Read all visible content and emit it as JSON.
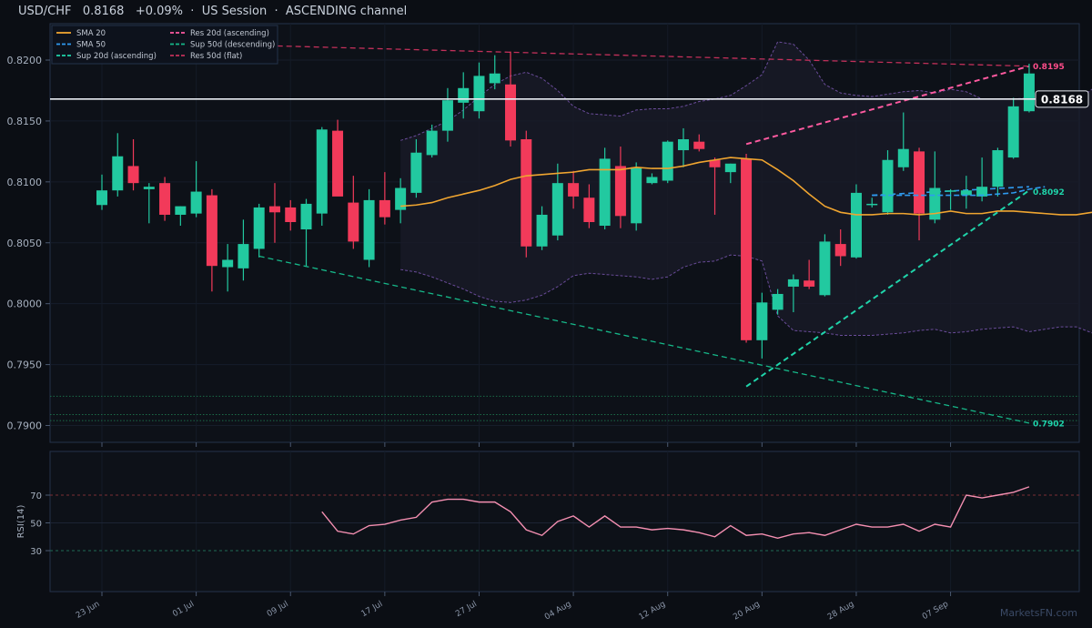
{
  "header": {
    "symbol": "USD/CHF",
    "price": "0.8168",
    "change": "+0.09%",
    "session": "US Session",
    "channel": "ASCENDING channel",
    "sep": "·"
  },
  "watermark": "MarketsFN.com",
  "legend": [
    {
      "label": "SMA 20",
      "color": "#f0a530",
      "dash": "solid"
    },
    {
      "label": "SMA 50",
      "color": "#2f9bf0",
      "dash": "dashed"
    },
    {
      "label": "Sup 20d (ascending)",
      "color": "#1fd4aa",
      "dash": "dashed"
    },
    {
      "label": "Res 20d (ascending)",
      "color": "#ff5aa0",
      "dash": "dashed"
    },
    {
      "label": "Sup 50d (descending)",
      "color": "#16b889",
      "dash": "dashed"
    },
    {
      "label": "Res 50d (flat)",
      "color": "#c2305a",
      "dash": "dashed"
    }
  ],
  "colors": {
    "up": "#22c9a0",
    "down": "#f23a5a",
    "sma20": "#f0a530",
    "sma50": "#2f9bf0",
    "rsi": "#f48fb1"
  },
  "chart_data": {
    "type": "candlestick",
    "ylim": [
      0.7888,
      0.8225
    ],
    "yticks": [
      "0.7900",
      "0.7950",
      "0.8000",
      "0.8050",
      "0.8100",
      "0.8150",
      "0.8200"
    ],
    "xticks": [
      {
        "i": 0,
        "label": "23 Jun"
      },
      {
        "i": 6,
        "label": "01 Jul"
      },
      {
        "i": 12,
        "label": "09 Jul"
      },
      {
        "i": 18,
        "label": "17 Jul"
      },
      {
        "i": 24,
        "label": "27 Jul"
      },
      {
        "i": 30,
        "label": "04 Aug"
      },
      {
        "i": 36,
        "label": "12 Aug"
      },
      {
        "i": 42,
        "label": "20 Aug"
      },
      {
        "i": 48,
        "label": "28 Aug"
      },
      {
        "i": 54,
        "label": "07 Sep"
      }
    ],
    "candles": [
      {
        "o": 0.8081,
        "h": 0.8106,
        "l": 0.8077,
        "c": 0.8093
      },
      {
        "o": 0.8093,
        "h": 0.814,
        "l": 0.8088,
        "c": 0.8121
      },
      {
        "o": 0.8113,
        "h": 0.8135,
        "l": 0.8093,
        "c": 0.8099
      },
      {
        "o": 0.8094,
        "h": 0.8099,
        "l": 0.8066,
        "c": 0.8096
      },
      {
        "o": 0.8099,
        "h": 0.8104,
        "l": 0.8068,
        "c": 0.8073
      },
      {
        "o": 0.8073,
        "h": 0.808,
        "l": 0.8064,
        "c": 0.808
      },
      {
        "o": 0.8074,
        "h": 0.8117,
        "l": 0.8071,
        "c": 0.8092
      },
      {
        "o": 0.8089,
        "h": 0.8094,
        "l": 0.801,
        "c": 0.8031
      },
      {
        "o": 0.803,
        "h": 0.8049,
        "l": 0.801,
        "c": 0.8036
      },
      {
        "o": 0.8029,
        "h": 0.8069,
        "l": 0.8019,
        "c": 0.8049
      },
      {
        "o": 0.8045,
        "h": 0.8082,
        "l": 0.8038,
        "c": 0.8079
      },
      {
        "o": 0.808,
        "h": 0.8099,
        "l": 0.805,
        "c": 0.8075
      },
      {
        "o": 0.8079,
        "h": 0.8085,
        "l": 0.806,
        "c": 0.8067
      },
      {
        "o": 0.8061,
        "h": 0.8086,
        "l": 0.8031,
        "c": 0.8082
      },
      {
        "o": 0.8074,
        "h": 0.8145,
        "l": 0.8064,
        "c": 0.8143
      },
      {
        "o": 0.8142,
        "h": 0.8151,
        "l": 0.809,
        "c": 0.8088
      },
      {
        "o": 0.8083,
        "h": 0.8105,
        "l": 0.8045,
        "c": 0.8051
      },
      {
        "o": 0.8036,
        "h": 0.8094,
        "l": 0.803,
        "c": 0.8085
      },
      {
        "o": 0.8085,
        "h": 0.8108,
        "l": 0.8065,
        "c": 0.8071
      },
      {
        "o": 0.8077,
        "h": 0.8103,
        "l": 0.8066,
        "c": 0.8095
      },
      {
        "o": 0.8091,
        "h": 0.8135,
        "l": 0.8087,
        "c": 0.8124
      },
      {
        "o": 0.8122,
        "h": 0.8147,
        "l": 0.812,
        "c": 0.8142
      },
      {
        "o": 0.8142,
        "h": 0.8177,
        "l": 0.8133,
        "c": 0.8167
      },
      {
        "o": 0.8165,
        "h": 0.819,
        "l": 0.8152,
        "c": 0.8177
      },
      {
        "o": 0.8158,
        "h": 0.8198,
        "l": 0.8152,
        "c": 0.8187
      },
      {
        "o": 0.8181,
        "h": 0.8204,
        "l": 0.8176,
        "c": 0.8189
      },
      {
        "o": 0.818,
        "h": 0.8207,
        "l": 0.8129,
        "c": 0.8134
      },
      {
        "o": 0.8135,
        "h": 0.8142,
        "l": 0.8038,
        "c": 0.8047
      },
      {
        "o": 0.8047,
        "h": 0.808,
        "l": 0.8044,
        "c": 0.8073
      },
      {
        "o": 0.8056,
        "h": 0.8115,
        "l": 0.8052,
        "c": 0.8099
      },
      {
        "o": 0.8099,
        "h": 0.8109,
        "l": 0.8078,
        "c": 0.8088
      },
      {
        "o": 0.8087,
        "h": 0.8098,
        "l": 0.8062,
        "c": 0.8067
      },
      {
        "o": 0.8064,
        "h": 0.8128,
        "l": 0.8061,
        "c": 0.8119
      },
      {
        "o": 0.8113,
        "h": 0.8129,
        "l": 0.8062,
        "c": 0.8072
      },
      {
        "o": 0.8066,
        "h": 0.8116,
        "l": 0.806,
        "c": 0.8112
      },
      {
        "o": 0.8099,
        "h": 0.8107,
        "l": 0.8098,
        "c": 0.8104
      },
      {
        "o": 0.8101,
        "h": 0.8134,
        "l": 0.8099,
        "c": 0.8133
      },
      {
        "o": 0.8126,
        "h": 0.8144,
        "l": 0.8112,
        "c": 0.8135
      },
      {
        "o": 0.8133,
        "h": 0.8139,
        "l": 0.8125,
        "c": 0.8127
      },
      {
        "o": 0.8118,
        "h": 0.812,
        "l": 0.8073,
        "c": 0.8112
      },
      {
        "o": 0.8108,
        "h": 0.8115,
        "l": 0.8099,
        "c": 0.8115
      },
      {
        "o": 0.8119,
        "h": 0.8123,
        "l": 0.7968,
        "c": 0.797
      },
      {
        "o": 0.797,
        "h": 0.8009,
        "l": 0.7955,
        "c": 0.8001
      },
      {
        "o": 0.7995,
        "h": 0.8012,
        "l": 0.7991,
        "c": 0.8008
      },
      {
        "o": 0.8014,
        "h": 0.8024,
        "l": 0.7993,
        "c": 0.802
      },
      {
        "o": 0.8019,
        "h": 0.8036,
        "l": 0.8012,
        "c": 0.8014
      },
      {
        "o": 0.8007,
        "h": 0.8057,
        "l": 0.8006,
        "c": 0.8051
      },
      {
        "o": 0.8049,
        "h": 0.8061,
        "l": 0.8031,
        "c": 0.8039
      },
      {
        "o": 0.8038,
        "h": 0.8098,
        "l": 0.8037,
        "c": 0.8091
      },
      {
        "o": 0.8082,
        "h": 0.8087,
        "l": 0.8079,
        "c": 0.8082
      },
      {
        "o": 0.8075,
        "h": 0.8126,
        "l": 0.8073,
        "c": 0.8118
      },
      {
        "o": 0.8112,
        "h": 0.8157,
        "l": 0.8109,
        "c": 0.8127
      },
      {
        "o": 0.8125,
        "h": 0.8128,
        "l": 0.8052,
        "c": 0.8074
      },
      {
        "o": 0.8069,
        "h": 0.8125,
        "l": 0.8066,
        "c": 0.8095
      },
      {
        "o": 0.8093,
        "h": 0.8094,
        "l": 0.8077,
        "c": 0.8093
      },
      {
        "o": 0.8089,
        "h": 0.8105,
        "l": 0.8078,
        "c": 0.8093
      },
      {
        "o": 0.8088,
        "h": 0.812,
        "l": 0.8084,
        "c": 0.8096
      },
      {
        "o": 0.8096,
        "h": 0.8128,
        "l": 0.8088,
        "c": 0.8126
      },
      {
        "o": 0.812,
        "h": 0.8169,
        "l": 0.8119,
        "c": 0.8162
      },
      {
        "o": 0.8158,
        "h": 0.8197,
        "l": 0.8157,
        "c": 0.8189
      }
    ],
    "sma20": {
      "start": 19,
      "values": [
        0.808,
        0.8081,
        0.8083,
        0.8087,
        0.809,
        0.8093,
        0.8097,
        0.8102,
        0.8105,
        0.8106,
        0.8107,
        0.8108,
        0.811,
        0.811,
        0.811,
        0.8112,
        0.8111,
        0.8111,
        0.8113,
        0.8116,
        0.8118,
        0.812,
        0.8119,
        0.8118,
        0.811,
        0.8101,
        0.809,
        0.808,
        0.8075,
        0.8073,
        0.8073,
        0.8074,
        0.8074,
        0.8073,
        0.8074,
        0.8076,
        0.8074,
        0.8074,
        0.8076,
        0.8076,
        0.8075,
        0.8074,
        0.8073,
        0.8073,
        0.8075,
        0.8079
      ]
    },
    "sma50": {
      "start": 49,
      "values": [
        0.8089,
        0.8089,
        0.8089,
        0.8089,
        0.8089,
        0.8089,
        0.8089,
        0.8089,
        0.809,
        0.8091,
        0.8094,
        0.8096
      ]
    },
    "bollinger": {
      "start": 19,
      "upper": [
        0.8134,
        0.8138,
        0.8144,
        0.815,
        0.8159,
        0.817,
        0.818,
        0.8187,
        0.819,
        0.8185,
        0.8175,
        0.8162,
        0.8156,
        0.8155,
        0.8154,
        0.8159,
        0.816,
        0.816,
        0.8162,
        0.8166,
        0.8168,
        0.8171,
        0.8179,
        0.8188,
        0.8215,
        0.8213,
        0.82,
        0.818,
        0.8173,
        0.8171,
        0.817,
        0.8172,
        0.8174,
        0.8175,
        0.8173,
        0.8176,
        0.8174,
        0.8168,
        0.8168,
        0.8168,
        0.8169,
        0.8171,
        0.8168,
        0.8166,
        0.8176,
        0.8194
      ],
      "lower": [
        0.8028,
        0.8026,
        0.8022,
        0.8017,
        0.8012,
        0.8006,
        0.8002,
        0.8001,
        0.8003,
        0.8007,
        0.8014,
        0.8023,
        0.8025,
        0.8024,
        0.8023,
        0.8022,
        0.802,
        0.8022,
        0.803,
        0.8034,
        0.8035,
        0.804,
        0.8039,
        0.8035,
        0.799,
        0.7978,
        0.7977,
        0.7976,
        0.7974,
        0.7974,
        0.7974,
        0.7975,
        0.7976,
        0.7978,
        0.7979,
        0.7976,
        0.7977,
        0.7979,
        0.798,
        0.7981,
        0.7977,
        0.7979,
        0.7981,
        0.7981,
        0.7976,
        0.7965
      ]
    },
    "trendlines": [
      {
        "name": "Sup 20d (ascending)",
        "from": [
          41,
          0.7932
        ],
        "to": [
          59,
          0.8093
        ],
        "color": "#1fd4aa",
        "width": 2
      },
      {
        "name": "Res 20d (ascending)",
        "from": [
          41,
          0.8131
        ],
        "to": [
          59,
          0.8195
        ],
        "color": "#ff5aa0",
        "width": 2
      },
      {
        "name": "Sup 50d (descending)",
        "from": [
          10,
          0.8039
        ],
        "to": [
          59,
          0.7902
        ],
        "color": "#16b889",
        "width": 1.3
      },
      {
        "name": "Res 50d (flat)",
        "from": [
          10,
          0.8212
        ],
        "to": [
          59,
          0.8195
        ],
        "color": "#c2305a",
        "width": 1.3
      },
      {
        "name": "SMA 50",
        "from": [
          49,
          0.8089
        ],
        "to": [
          59,
          0.8096
        ],
        "color": "#2f9bf0",
        "width": 1.6
      }
    ],
    "hlines": [
      0.7924,
      0.7909,
      0.7904
    ],
    "current_price": {
      "value": 0.8168,
      "label": "0.8168"
    },
    "level_labels": [
      {
        "value": 0.8195,
        "label": "0.8195",
        "color": "#ff4d8a"
      },
      {
        "value": 0.8092,
        "label": "0.8092",
        "color": "#1fd4aa"
      },
      {
        "value": 0.7902,
        "label": "0.7902",
        "color": "#1fd4aa"
      }
    ],
    "rsi": {
      "ylabel": "RSI(14)",
      "yticks": [
        "30",
        "50",
        "70"
      ],
      "levels": [
        70,
        30
      ],
      "start": 14,
      "values": [
        58,
        44,
        42,
        48,
        49,
        52,
        54,
        65,
        67,
        67,
        65,
        65,
        58,
        45,
        41,
        51,
        55,
        47,
        55,
        47,
        47,
        45,
        46,
        45,
        43,
        40,
        48,
        41,
        42,
        39,
        42,
        43,
        41,
        45,
        49,
        47,
        47,
        49,
        44,
        49,
        47,
        70,
        68,
        70,
        72,
        76
      ]
    }
  }
}
